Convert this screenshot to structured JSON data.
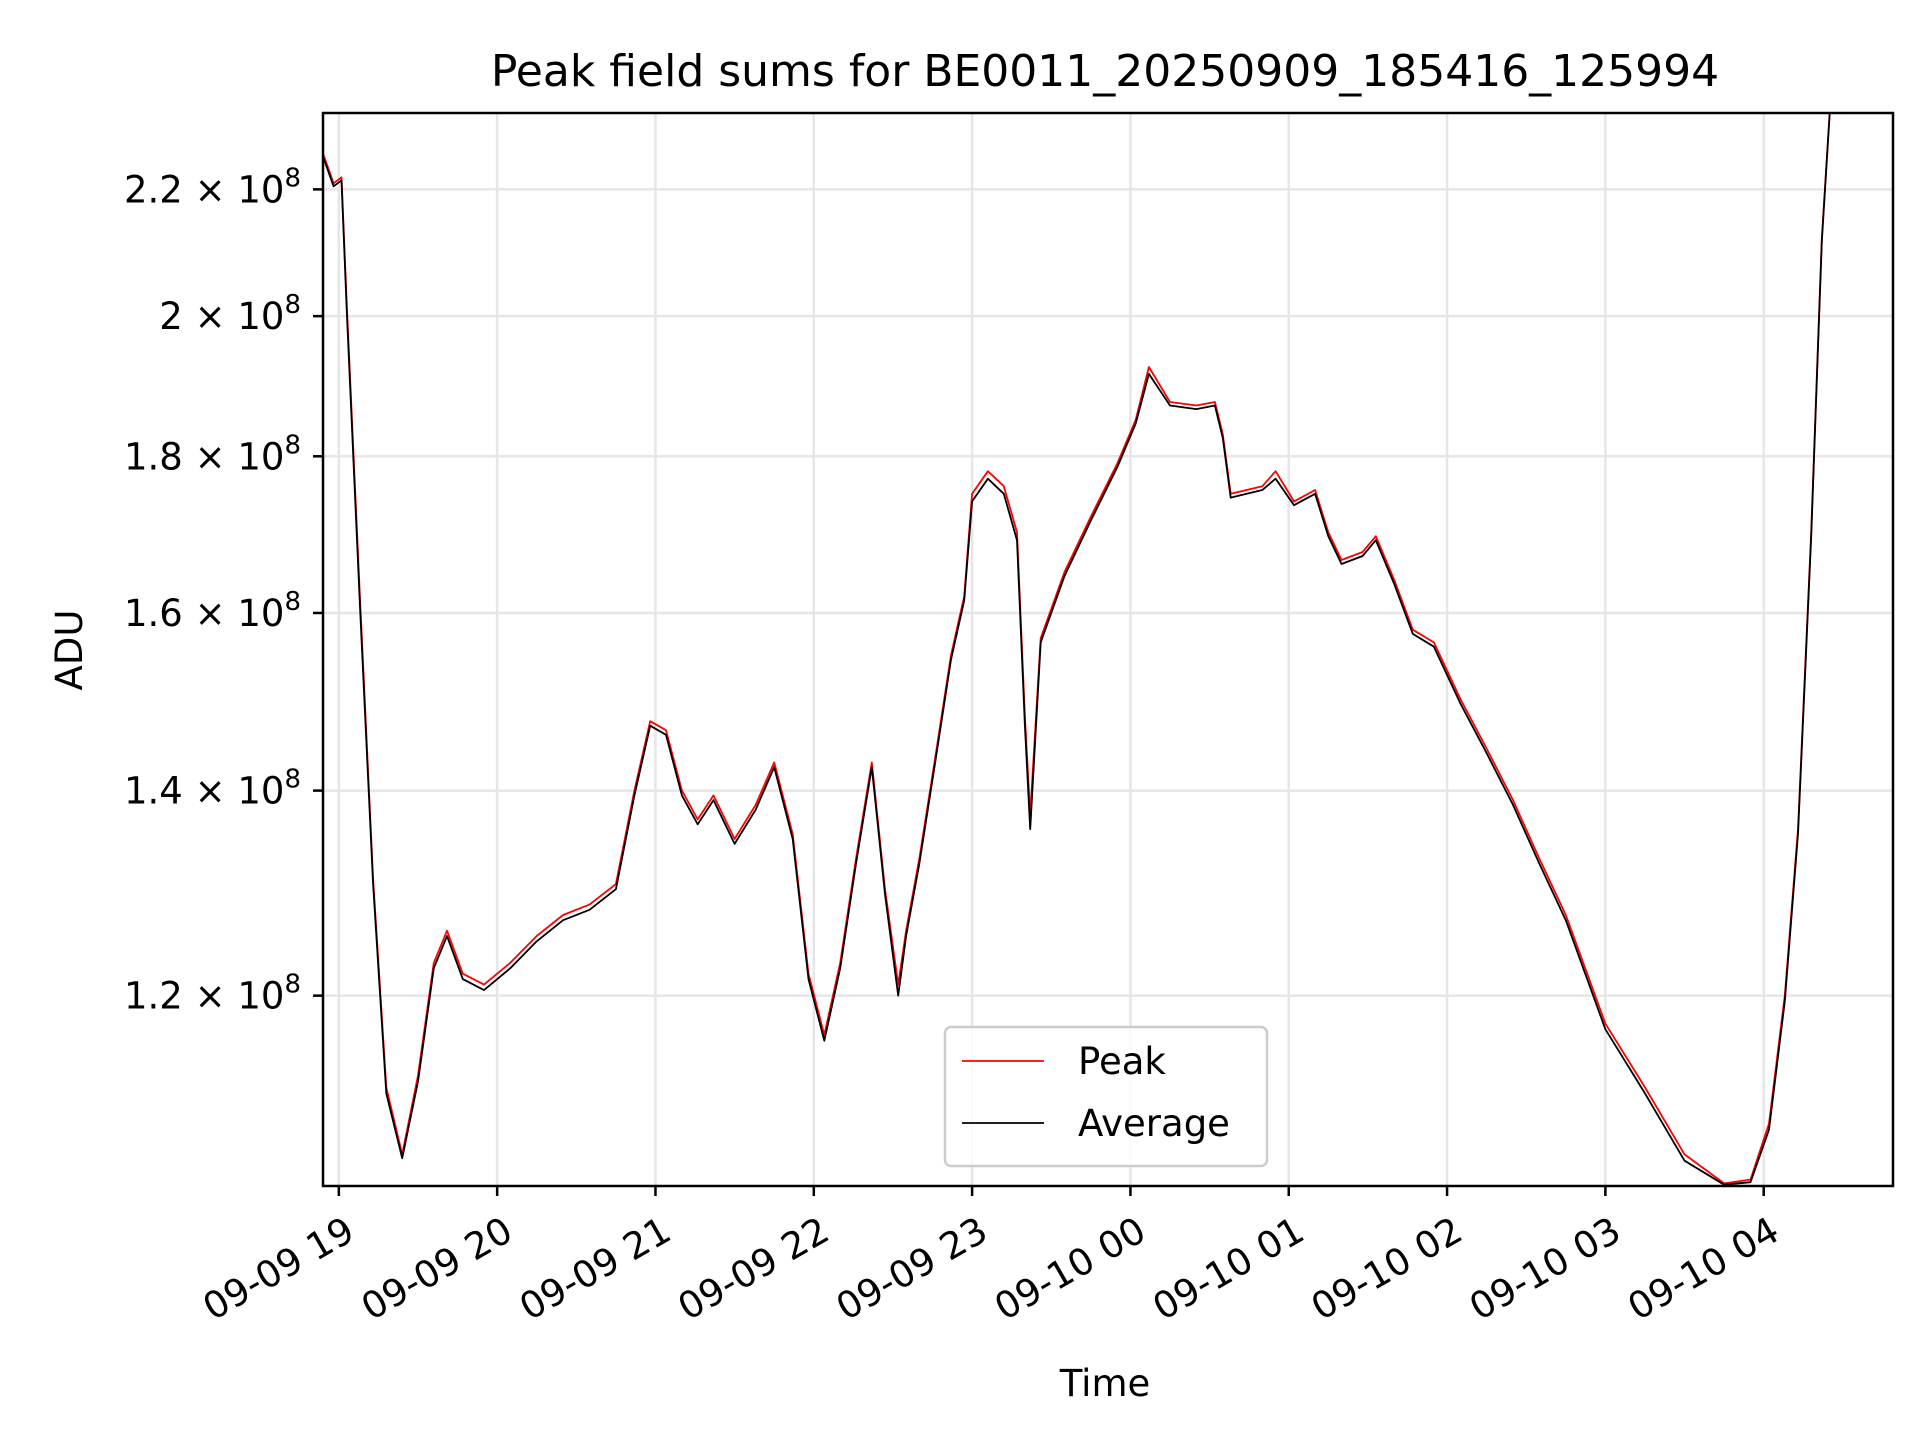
{
  "chart_data": {
    "type": "line",
    "title": "Peak field sums for BE0011_20250909_185416_125994",
    "xlabel": "Time",
    "ylabel": "ADU",
    "yscale": "log",
    "xlim": [
      "2025-09-09 18:54",
      "2025-09-10 04:49"
    ],
    "ylim": [
      104000000,
      233000000
    ],
    "grid": true,
    "legend_position": "lower-center",
    "x_ticks": [
      "09-09 19",
      "09-09 20",
      "09-09 21",
      "09-09 22",
      "09-09 23",
      "09-10 00",
      "09-10 01",
      "09-10 02",
      "09-10 03",
      "09-10 04"
    ],
    "y_ticks": [
      {
        "value": 120000000,
        "mantissa": "1.2",
        "base": "10",
        "exponent": "8"
      },
      {
        "value": 140000000,
        "mantissa": "1.4",
        "base": "10",
        "exponent": "8"
      },
      {
        "value": 160000000,
        "mantissa": "1.6",
        "base": "10",
        "exponent": "8"
      },
      {
        "value": 180000000,
        "mantissa": "1.8",
        "base": "10",
        "exponent": "8"
      },
      {
        "value": 200000000,
        "mantissa": "2",
        "base": "10",
        "exponent": "8"
      },
      {
        "value": 220000000,
        "mantissa": "2.2",
        "base": "10",
        "exponent": "8"
      }
    ],
    "series": [
      {
        "name": "Peak",
        "color": "#ff0000",
        "points": [
          [
            "2025-09-09 18:54",
            226000000
          ],
          [
            "2025-09-09 18:58",
            221000000
          ],
          [
            "2025-09-09 19:01",
            222000000
          ],
          [
            "2025-09-09 19:03",
            202000000
          ],
          [
            "2025-09-09 19:08",
            162000000
          ],
          [
            "2025-09-09 19:13",
            131000000
          ],
          [
            "2025-09-09 19:18",
            112000000
          ],
          [
            "2025-09-09 19:24",
            106500000
          ],
          [
            "2025-09-09 19:30",
            113000000
          ],
          [
            "2025-09-09 19:36",
            123000000
          ],
          [
            "2025-09-09 19:41",
            126000000
          ],
          [
            "2025-09-09 19:47",
            122000000
          ],
          [
            "2025-09-09 19:55",
            121000000
          ],
          [
            "2025-09-09 20:05",
            123000000
          ],
          [
            "2025-09-09 20:15",
            125500000
          ],
          [
            "2025-09-09 20:25",
            127500000
          ],
          [
            "2025-09-09 20:35",
            128500000
          ],
          [
            "2025-09-09 20:45",
            130500000
          ],
          [
            "2025-09-09 20:52",
            140000000
          ],
          [
            "2025-09-09 20:58",
            147500000
          ],
          [
            "2025-09-09 21:04",
            146500000
          ],
          [
            "2025-09-09 21:10",
            140000000
          ],
          [
            "2025-09-09 21:16",
            137000000
          ],
          [
            "2025-09-09 21:22",
            139500000
          ],
          [
            "2025-09-09 21:30",
            135000000
          ],
          [
            "2025-09-09 21:38",
            138500000
          ],
          [
            "2025-09-09 21:45",
            143000000
          ],
          [
            "2025-09-09 21:52",
            135500000
          ],
          [
            "2025-09-09 21:58",
            122000000
          ],
          [
            "2025-09-09 22:04",
            116500000
          ],
          [
            "2025-09-09 22:10",
            123000000
          ],
          [
            "2025-09-09 22:16",
            133000000
          ],
          [
            "2025-09-09 22:22",
            143000000
          ],
          [
            "2025-09-09 22:27",
            130000000
          ],
          [
            "2025-09-09 22:32",
            121000000
          ],
          [
            "2025-09-09 22:35",
            126000000
          ],
          [
            "2025-09-09 22:40",
            133000000
          ],
          [
            "2025-09-09 22:46",
            143500000
          ],
          [
            "2025-09-09 22:52",
            155000000
          ],
          [
            "2025-09-09 22:57",
            162000000
          ],
          [
            "2025-09-09 23:00",
            175000000
          ],
          [
            "2025-09-09 23:06",
            178000000
          ],
          [
            "2025-09-09 23:12",
            176000000
          ],
          [
            "2025-09-09 23:17",
            170000000
          ],
          [
            "2025-09-09 23:20",
            148000000
          ],
          [
            "2025-09-09 23:22",
            137500000
          ],
          [
            "2025-09-09 23:26",
            157000000
          ],
          [
            "2025-09-09 23:35",
            165000000
          ],
          [
            "2025-09-09 23:45",
            172000000
          ],
          [
            "2025-09-09 23:55",
            179000000
          ],
          [
            "2025-09-10 00:02",
            185000000
          ],
          [
            "2025-09-10 00:07",
            192500000
          ],
          [
            "2025-09-10 00:15",
            187500000
          ],
          [
            "2025-09-10 00:25",
            187000000
          ],
          [
            "2025-09-10 00:32",
            187500000
          ],
          [
            "2025-09-10 00:35",
            183000000
          ],
          [
            "2025-09-10 00:38",
            175000000
          ],
          [
            "2025-09-10 00:50",
            176000000
          ],
          [
            "2025-09-10 00:55",
            178000000
          ],
          [
            "2025-09-10 01:02",
            174000000
          ],
          [
            "2025-09-10 01:10",
            175500000
          ],
          [
            "2025-09-10 01:15",
            170000000
          ],
          [
            "2025-09-10 01:20",
            166500000
          ],
          [
            "2025-09-10 01:28",
            167500000
          ],
          [
            "2025-09-10 01:33",
            169500000
          ],
          [
            "2025-09-10 01:40",
            164000000
          ],
          [
            "2025-09-10 01:47",
            158000000
          ],
          [
            "2025-09-10 01:55",
            156500000
          ],
          [
            "2025-09-10 02:05",
            150000000
          ],
          [
            "2025-09-10 02:15",
            144500000
          ],
          [
            "2025-09-10 02:25",
            139000000
          ],
          [
            "2025-09-10 02:35",
            133000000
          ],
          [
            "2025-09-10 02:45",
            127500000
          ],
          [
            "2025-09-10 03:00",
            117500000
          ],
          [
            "2025-09-10 03:15",
            112000000
          ],
          [
            "2025-09-10 03:30",
            106500000
          ],
          [
            "2025-09-10 03:45",
            104200000
          ],
          [
            "2025-09-10 03:55",
            104500000
          ],
          [
            "2025-09-10 04:02",
            109000000
          ],
          [
            "2025-09-10 04:08",
            120000000
          ],
          [
            "2025-09-10 04:13",
            136000000
          ],
          [
            "2025-09-10 04:18",
            170000000
          ],
          [
            "2025-09-10 04:22",
            212000000
          ],
          [
            "2025-09-10 04:25",
            233000000
          ]
        ]
      },
      {
        "name": "Average",
        "color": "#000000",
        "points": [
          [
            "2025-09-09 18:54",
            225500000
          ],
          [
            "2025-09-09 18:58",
            220500000
          ],
          [
            "2025-09-09 19:01",
            221500000
          ],
          [
            "2025-09-09 19:03",
            201000000
          ],
          [
            "2025-09-09 19:08",
            161000000
          ],
          [
            "2025-09-09 19:13",
            130500000
          ],
          [
            "2025-09-09 19:18",
            111500000
          ],
          [
            "2025-09-09 19:24",
            106200000
          ],
          [
            "2025-09-09 19:30",
            112500000
          ],
          [
            "2025-09-09 19:36",
            122500000
          ],
          [
            "2025-09-09 19:41",
            125500000
          ],
          [
            "2025-09-09 19:47",
            121500000
          ],
          [
            "2025-09-09 19:55",
            120500000
          ],
          [
            "2025-09-09 20:05",
            122500000
          ],
          [
            "2025-09-09 20:15",
            125000000
          ],
          [
            "2025-09-09 20:25",
            127000000
          ],
          [
            "2025-09-09 20:35",
            128000000
          ],
          [
            "2025-09-09 20:45",
            130000000
          ],
          [
            "2025-09-09 20:52",
            139500000
          ],
          [
            "2025-09-09 20:58",
            147000000
          ],
          [
            "2025-09-09 21:04",
            146000000
          ],
          [
            "2025-09-09 21:10",
            139500000
          ],
          [
            "2025-09-09 21:16",
            136500000
          ],
          [
            "2025-09-09 21:22",
            139000000
          ],
          [
            "2025-09-09 21:30",
            134500000
          ],
          [
            "2025-09-09 21:38",
            138000000
          ],
          [
            "2025-09-09 21:45",
            142500000
          ],
          [
            "2025-09-09 21:52",
            135000000
          ],
          [
            "2025-09-09 21:58",
            121500000
          ],
          [
            "2025-09-09 22:04",
            116000000
          ],
          [
            "2025-09-09 22:10",
            122500000
          ],
          [
            "2025-09-09 22:16",
            132500000
          ],
          [
            "2025-09-09 22:22",
            142500000
          ],
          [
            "2025-09-09 22:27",
            129500000
          ],
          [
            "2025-09-09 22:32",
            120000000
          ],
          [
            "2025-09-09 22:35",
            125500000
          ],
          [
            "2025-09-09 22:40",
            132500000
          ],
          [
            "2025-09-09 22:46",
            143000000
          ],
          [
            "2025-09-09 22:52",
            154500000
          ],
          [
            "2025-09-09 22:57",
            161500000
          ],
          [
            "2025-09-09 23:00",
            174000000
          ],
          [
            "2025-09-09 23:06",
            177000000
          ],
          [
            "2025-09-09 23:12",
            175000000
          ],
          [
            "2025-09-09 23:17",
            169000000
          ],
          [
            "2025-09-09 23:20",
            147000000
          ],
          [
            "2025-09-09 23:22",
            136000000
          ],
          [
            "2025-09-09 23:26",
            156500000
          ],
          [
            "2025-09-09 23:35",
            164500000
          ],
          [
            "2025-09-09 23:45",
            171500000
          ],
          [
            "2025-09-09 23:55",
            178500000
          ],
          [
            "2025-09-10 00:02",
            184500000
          ],
          [
            "2025-09-10 00:07",
            191500000
          ],
          [
            "2025-09-10 00:15",
            187000000
          ],
          [
            "2025-09-10 00:25",
            186500000
          ],
          [
            "2025-09-10 00:32",
            187000000
          ],
          [
            "2025-09-10 00:35",
            182500000
          ],
          [
            "2025-09-10 00:38",
            174500000
          ],
          [
            "2025-09-10 00:50",
            175500000
          ],
          [
            "2025-09-10 00:55",
            177000000
          ],
          [
            "2025-09-10 01:02",
            173500000
          ],
          [
            "2025-09-10 01:10",
            175000000
          ],
          [
            "2025-09-10 01:15",
            169500000
          ],
          [
            "2025-09-10 01:20",
            166000000
          ],
          [
            "2025-09-10 01:28",
            167000000
          ],
          [
            "2025-09-10 01:33",
            169000000
          ],
          [
            "2025-09-10 01:40",
            163500000
          ],
          [
            "2025-09-10 01:47",
            157500000
          ],
          [
            "2025-09-10 01:55",
            156000000
          ],
          [
            "2025-09-10 02:05",
            149500000
          ],
          [
            "2025-09-10 02:15",
            144000000
          ],
          [
            "2025-09-10 02:25",
            138500000
          ],
          [
            "2025-09-10 02:35",
            132500000
          ],
          [
            "2025-09-10 02:45",
            127000000
          ],
          [
            "2025-09-10 03:00",
            117000000
          ],
          [
            "2025-09-10 03:15",
            111500000
          ],
          [
            "2025-09-10 03:30",
            106000000
          ],
          [
            "2025-09-10 03:45",
            104100000
          ],
          [
            "2025-09-10 03:55",
            104300000
          ],
          [
            "2025-09-10 04:02",
            108500000
          ],
          [
            "2025-09-10 04:08",
            119500000
          ],
          [
            "2025-09-10 04:13",
            135500000
          ],
          [
            "2025-09-10 04:18",
            169500000
          ],
          [
            "2025-09-10 04:22",
            211500000
          ],
          [
            "2025-09-10 04:25",
            233000000
          ]
        ]
      }
    ]
  }
}
